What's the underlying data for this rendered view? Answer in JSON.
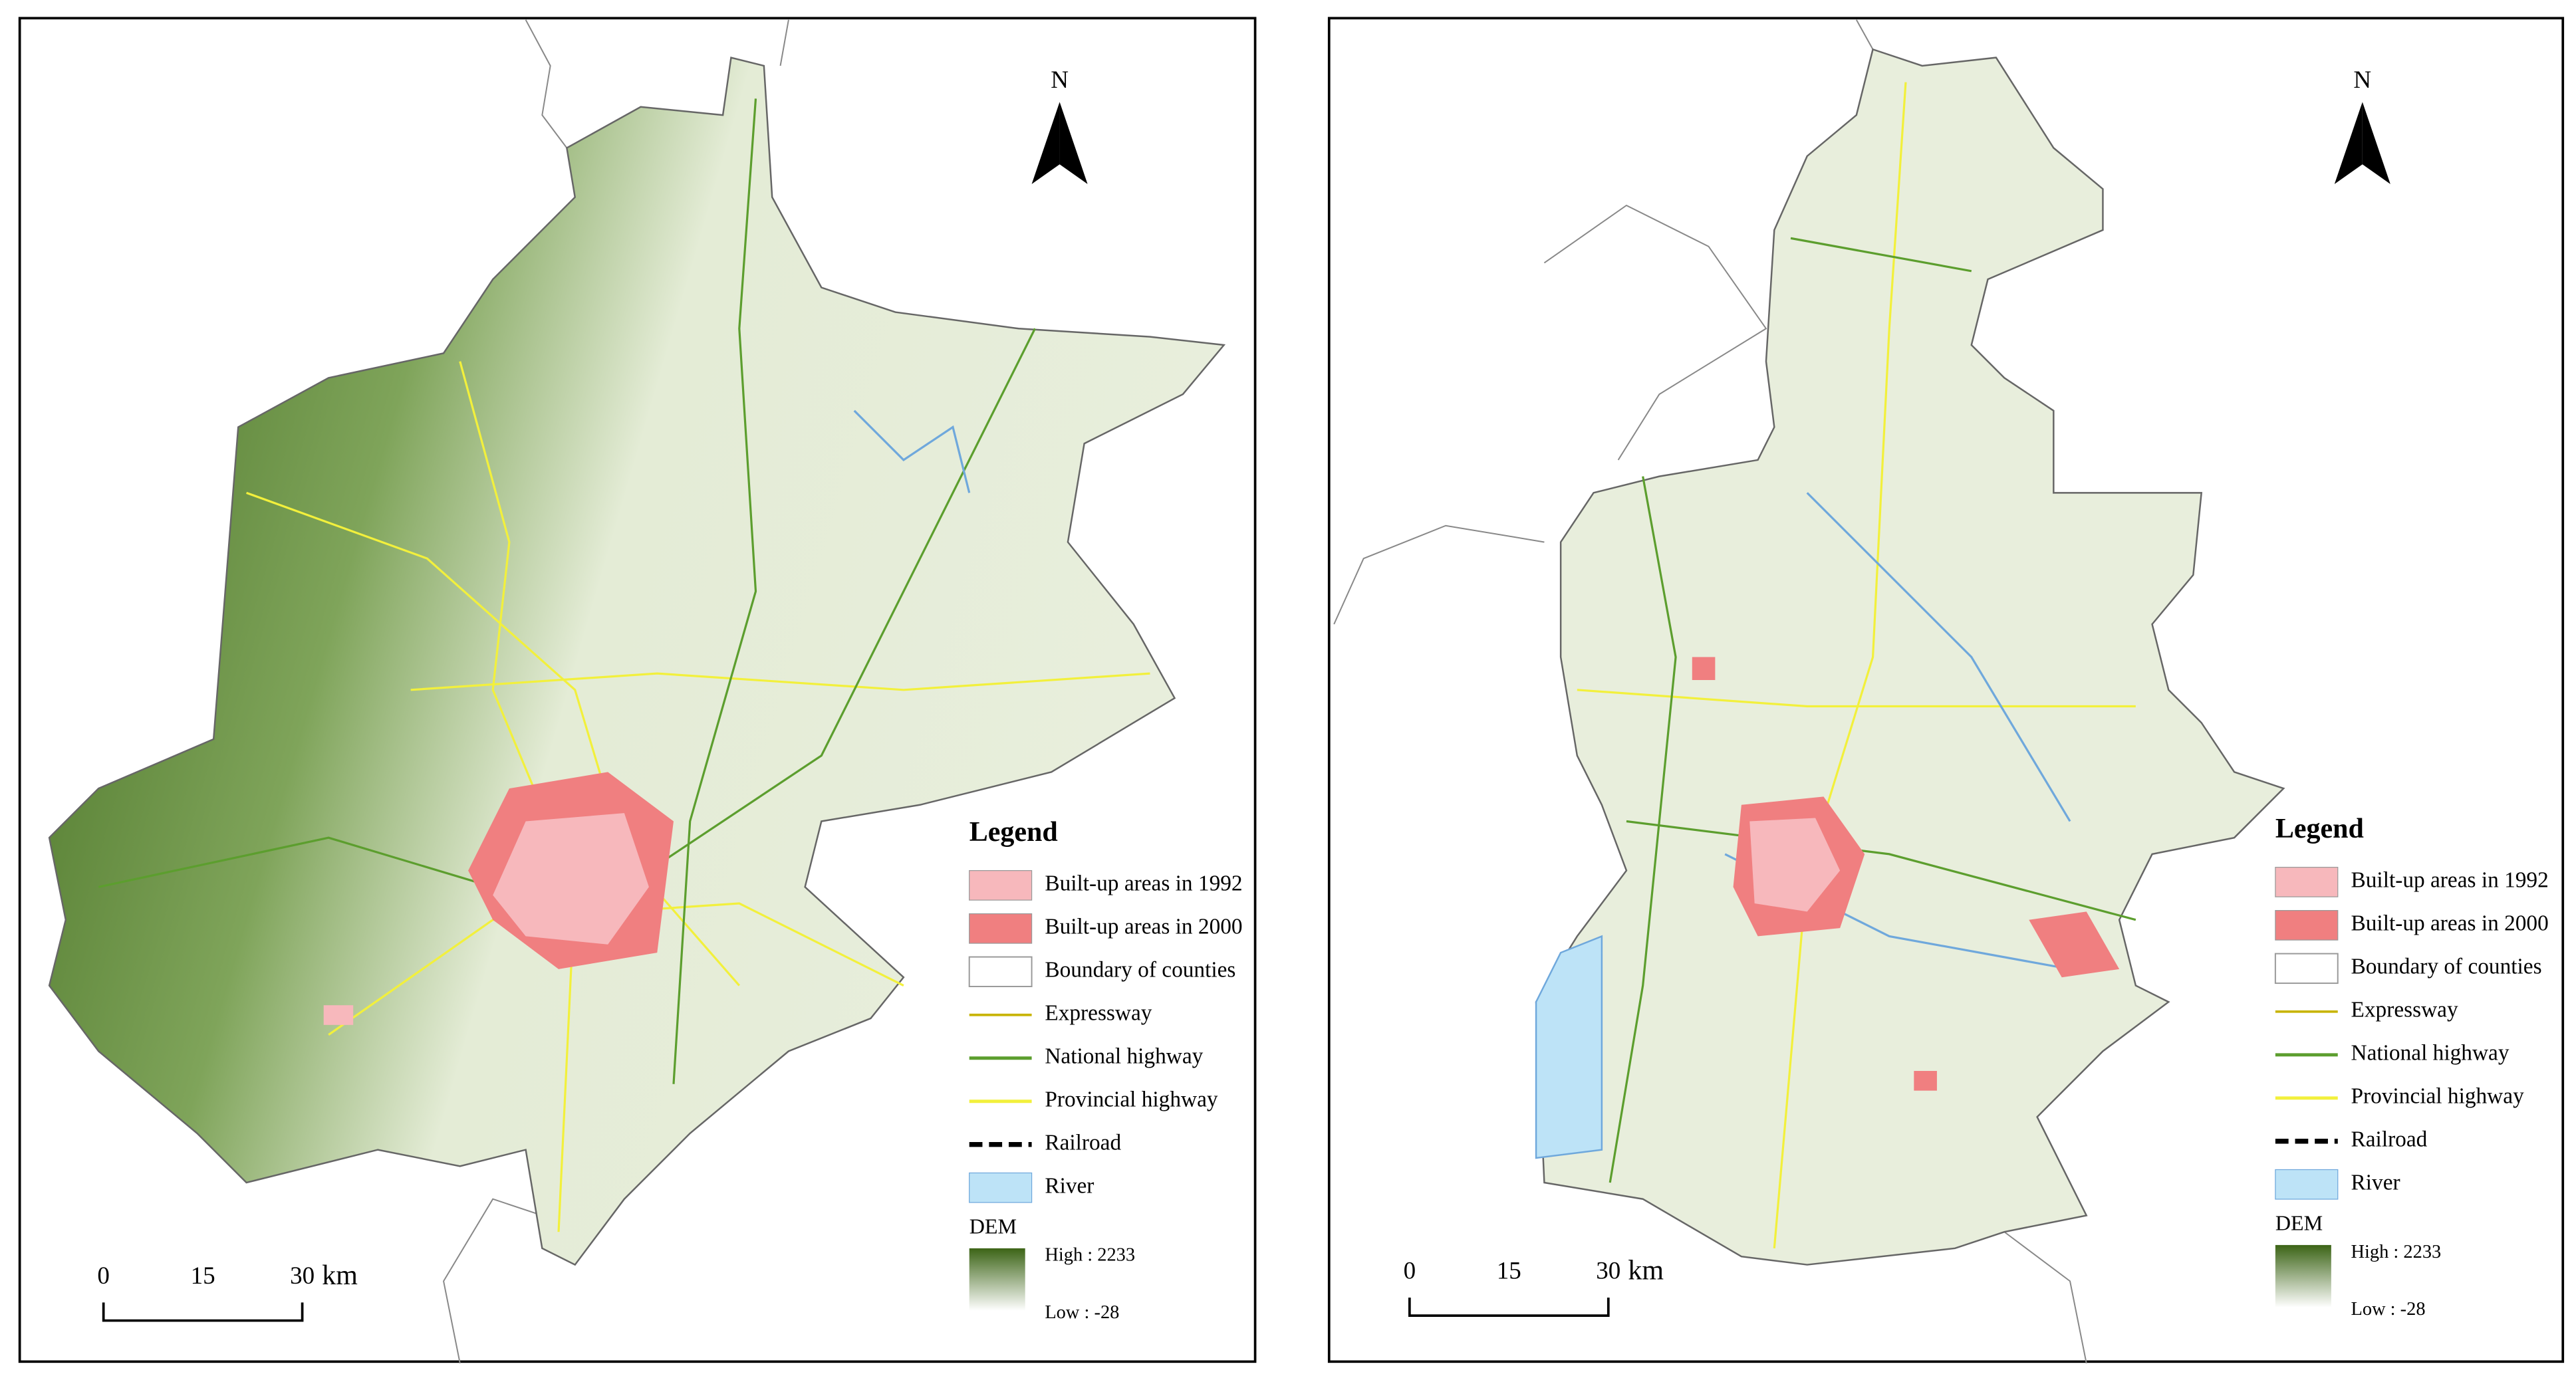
{
  "maps": [
    {
      "north": "N",
      "legend": {
        "title": "Legend",
        "items": [
          "Built-up areas in 1992",
          "Built-up areas in 2000",
          "Boundary of counties",
          "Expressway",
          "National highway",
          "Provincial highway",
          "Railroad",
          "River"
        ],
        "dem": {
          "title": "DEM",
          "high": "High : 2233",
          "low": "Low : -28"
        }
      },
      "scale": {
        "ticks": [
          "0",
          "15",
          "30"
        ],
        "unit": "km"
      }
    },
    {
      "north": "N",
      "legend": {
        "title": "Legend",
        "items": [
          "Built-up areas in 1992",
          "Built-up areas in 2000",
          "Boundary of counties",
          "Expressway",
          "National highway",
          "Provincial highway",
          "Railroad",
          "River"
        ],
        "dem": {
          "title": "DEM",
          "high": "High : 2233",
          "low": "Low : -28"
        }
      },
      "scale": {
        "ticks": [
          "0",
          "15",
          "30"
        ],
        "unit": "km"
      }
    }
  ]
}
